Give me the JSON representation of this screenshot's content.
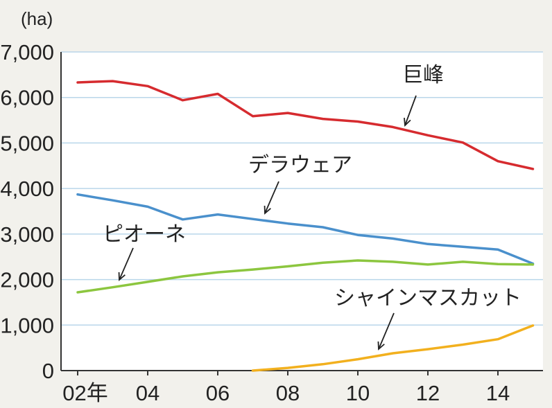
{
  "chart_data": {
    "type": "line",
    "unit": "(ha)",
    "ylim": [
      0,
      7000
    ],
    "yticks": [
      0,
      1000,
      2000,
      3000,
      4000,
      5000,
      6000,
      7000
    ],
    "ytick_labels": [
      "0",
      "1,000",
      "2,000",
      "3,000",
      "4,000",
      "5,000",
      "6,000",
      "7,000"
    ],
    "x": [
      2002,
      2003,
      2004,
      2005,
      2006,
      2007,
      2008,
      2009,
      2010,
      2011,
      2012,
      2013,
      2014,
      2015
    ],
    "xticks": [
      2002,
      2004,
      2006,
      2008,
      2010,
      2012,
      2014
    ],
    "xtick_labels": [
      "02年",
      "04",
      "06",
      "08",
      "10",
      "12",
      "14"
    ],
    "grid": true,
    "series": [
      {
        "name": "巨峰",
        "color": "#d62b2f",
        "values": [
          6330,
          6360,
          6250,
          5940,
          6080,
          5590,
          5660,
          5530,
          5470,
          5350,
          5170,
          5010,
          4600,
          4430
        ]
      },
      {
        "name": "デラウェア",
        "color": "#4a90cc",
        "values": [
          3870,
          3740,
          3600,
          3320,
          3430,
          3330,
          3230,
          3150,
          2980,
          2900,
          2780,
          2720,
          2660,
          2350
        ]
      },
      {
        "name": "ピオーネ",
        "color": "#8cc63f",
        "values": [
          1720,
          1830,
          1950,
          2070,
          2160,
          2220,
          2290,
          2370,
          2420,
          2390,
          2330,
          2390,
          2340,
          2330
        ]
      },
      {
        "name": "シャインマスカット",
        "color": "#f2b01e",
        "x": [
          2007,
          2008,
          2009,
          2010,
          2011,
          2012,
          2013,
          2014,
          2015
        ],
        "values": [
          0,
          60,
          140,
          250,
          380,
          470,
          570,
          690,
          990
        ]
      }
    ]
  }
}
